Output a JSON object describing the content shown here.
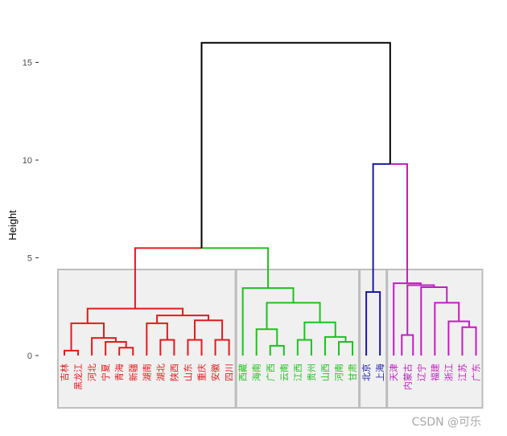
{
  "chart_data": {
    "type": "dendrogram",
    "ylabel": "Height",
    "ylim": [
      0,
      16
    ],
    "y_ticks": [
      0,
      5,
      10,
      15
    ],
    "leaves": [
      "吉林",
      "黑龙江",
      "河北",
      "宁夏",
      "青海",
      "新疆",
      "湖南",
      "湖北",
      "陕西",
      "山东",
      "重庆",
      "安徽",
      "四川",
      "西藏",
      "海南",
      "广西",
      "云南",
      "江西",
      "贵州",
      "山西",
      "河南",
      "甘肃",
      "北京",
      "上海",
      "天津",
      "内蒙古",
      "辽宁",
      "福建",
      "浙江",
      "江苏",
      "广东"
    ],
    "clusters": [
      {
        "id": 1,
        "color": "#e41a1c",
        "members": [
          "吉林",
          "黑龙江",
          "河北",
          "宁夏",
          "青海",
          "新疆",
          "湖南",
          "湖北",
          "陕西",
          "山东",
          "重庆",
          "安徽",
          "四川"
        ]
      },
      {
        "id": 2,
        "color": "#1cc21c",
        "members": [
          "西藏",
          "海南",
          "广西",
          "云南",
          "江西",
          "贵州",
          "山西",
          "河南",
          "甘肃"
        ]
      },
      {
        "id": 3,
        "color": "#1a1aa8",
        "members": [
          "北京",
          "上海"
        ]
      },
      {
        "id": 4,
        "color": "#c21cc2",
        "members": [
          "天津",
          "内蒙古",
          "辽宁",
          "福建",
          "浙江",
          "江苏",
          "广东"
        ]
      }
    ],
    "merges": [
      {
        "a": "吉林",
        "b": "黑龙江",
        "h": 0.25
      },
      {
        "a": "青海",
        "b": "新疆",
        "h": 0.4
      },
      {
        "a": "宁夏",
        "b": "c2",
        "h": 0.7,
        "id": "c2b"
      },
      {
        "a": "河北",
        "b": "c2b",
        "h": 0.9,
        "id": "c3"
      },
      {
        "a": "c1",
        "b": "c3",
        "h": 1.6,
        "id": "c4"
      },
      {
        "a": "湖北",
        "b": "陕西",
        "h": 0.8,
        "id": "c5"
      },
      {
        "a": "湖南",
        "b": "c5",
        "h": 1.6,
        "id": "c6"
      },
      {
        "a": "山东",
        "b": "重庆",
        "h": 0.8,
        "id": "c7"
      },
      {
        "a": "安徽",
        "b": "四川",
        "h": 0.8,
        "id": "c8"
      },
      {
        "a": "c7",
        "b": "c8",
        "h": 1.8,
        "id": "c9"
      },
      {
        "a": "c6",
        "b": "c9",
        "h": 2.0,
        "id": "c10"
      },
      {
        "a": "c4",
        "b": "c10",
        "h": 2.4,
        "id": "R"
      },
      {
        "a": "广西",
        "b": "云南",
        "h": 0.5,
        "id": "g1"
      },
      {
        "a": "海南",
        "b": "g1",
        "h": 1.35,
        "id": "g2"
      },
      {
        "a": "江西",
        "b": "贵州",
        "h": 0.8,
        "id": "g3"
      },
      {
        "a": "河南",
        "b": "甘肃",
        "h": 0.7,
        "id": "g4"
      },
      {
        "a": "山西",
        "b": "g4",
        "h": 0.95,
        "id": "g5"
      },
      {
        "a": "g3",
        "b": "g5",
        "h": 1.7,
        "id": "g6"
      },
      {
        "a": "g2",
        "b": "g6",
        "h": 2.7,
        "id": "g7"
      },
      {
        "a": "西藏",
        "b": "g7",
        "h": 3.45,
        "id": "G"
      },
      {
        "a": "R",
        "b": "G",
        "h": 5.5,
        "id": "RG"
      },
      {
        "a": "北京",
        "b": "上海",
        "h": 3.2,
        "id": "B"
      },
      {
        "a": "江苏",
        "b": "广东",
        "h": 1.45,
        "id": "m1"
      },
      {
        "a": "浙江",
        "b": "m1",
        "h": 1.75,
        "id": "m2"
      },
      {
        "a": "福建",
        "b": "m2",
        "h": 2.7,
        "id": "m3"
      },
      {
        "a": "辽宁",
        "b": "m3",
        "h": 3.5,
        "id": "m4"
      },
      {
        "a": "内蒙古",
        "b": "m4",
        "h": 1.05,
        "id": "m0",
        "note": ""
      },
      {
        "a": "天津",
        "b": "m5",
        "h": 3.7,
        "id": "M"
      },
      {
        "a": "B",
        "b": "M",
        "h": 9.8,
        "id": "BM"
      },
      {
        "a": "RG",
        "b": "BM",
        "h": 16,
        "id": "ROOT"
      }
    ]
  },
  "watermark": "CSDN @可乐"
}
